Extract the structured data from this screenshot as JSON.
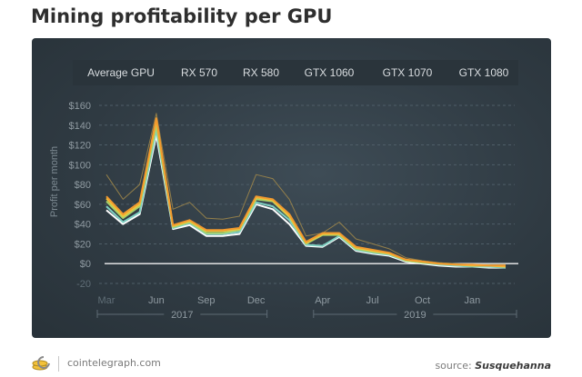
{
  "page": {
    "title": "Mining profitability per GPU"
  },
  "footer": {
    "site": "cointelegraph.com",
    "source_prefix": "source:",
    "source_name": "Susquehanna"
  },
  "chart_data": {
    "type": "line",
    "title": "Mining profitability per GPU",
    "ylabel": "Profit per month",
    "xlabel": "",
    "ylim": [
      -20,
      160
    ],
    "y_ticks": [
      "$160",
      "$140",
      "$120",
      "$100",
      "$80",
      "$60",
      "$40",
      "$20",
      "$0",
      "-20"
    ],
    "y_tick_values": [
      160,
      140,
      120,
      100,
      80,
      60,
      40,
      20,
      0,
      -20
    ],
    "x_ticks": [
      "Mar",
      "Jun",
      "Sep",
      "Dec",
      "Apr",
      "Jul",
      "Oct",
      "Jan"
    ],
    "x_tick_index": [
      0,
      3,
      6,
      9,
      13,
      16,
      19,
      22
    ],
    "year_labels": [
      {
        "label": "2017",
        "from_index": 0,
        "to_index": 9
      },
      {
        "label": "2019",
        "from_index": 13,
        "to_index": 24
      }
    ],
    "legend_position": "top",
    "grid": true,
    "zero_line": true,
    "x": [
      0,
      1,
      2,
      3,
      4,
      5,
      6,
      7,
      8,
      9,
      10,
      11,
      12,
      13,
      14,
      15,
      16,
      17,
      18,
      19,
      20,
      21,
      22,
      23,
      24
    ],
    "series": [
      {
        "name": "Average GPU",
        "color": "#ffffff",
        "values": [
          54,
          40,
          50,
          130,
          35,
          39,
          28,
          28,
          30,
          60,
          55,
          40,
          18,
          17,
          27,
          13,
          10,
          8,
          2,
          0,
          -2,
          -3,
          -3,
          -4,
          -4
        ]
      },
      {
        "name": "RX 570",
        "color": "#7fd0c2",
        "values": [
          58,
          42,
          52,
          135,
          36,
          41,
          30,
          30,
          32,
          62,
          58,
          44,
          19,
          18,
          28,
          14,
          11,
          9,
          3,
          1,
          -1,
          -2,
          -3,
          -3,
          -4
        ]
      },
      {
        "name": "RX 580",
        "color": "#a8d36a",
        "values": [
          63,
          46,
          58,
          140,
          37,
          42,
          31,
          31,
          34,
          65,
          63,
          47,
          20,
          29,
          29,
          15,
          12,
          10,
          3,
          1,
          0,
          -1,
          -2,
          -2,
          -3
        ]
      },
      {
        "name": "GTX 1060",
        "color": "#f0c33c",
        "values": [
          66,
          48,
          60,
          145,
          38,
          43,
          33,
          33,
          35,
          67,
          64,
          48,
          21,
          30,
          30,
          16,
          13,
          10,
          4,
          2,
          0,
          -1,
          -2,
          -2,
          -3
        ]
      },
      {
        "name": "GTX 1070",
        "color": "#f29a2e",
        "values": [
          68,
          50,
          62,
          147,
          39,
          44,
          34,
          34,
          36,
          68,
          65,
          50,
          22,
          31,
          31,
          17,
          14,
          11,
          4,
          2,
          0,
          -1,
          -1,
          -2,
          -2
        ]
      },
      {
        "name": "GTX 1080",
        "color": "#a38a4a",
        "values": [
          90,
          65,
          80,
          152,
          55,
          62,
          46,
          45,
          48,
          90,
          86,
          65,
          28,
          31,
          42,
          25,
          20,
          15,
          6,
          3,
          1,
          0,
          -1,
          -1,
          -1
        ]
      }
    ]
  }
}
